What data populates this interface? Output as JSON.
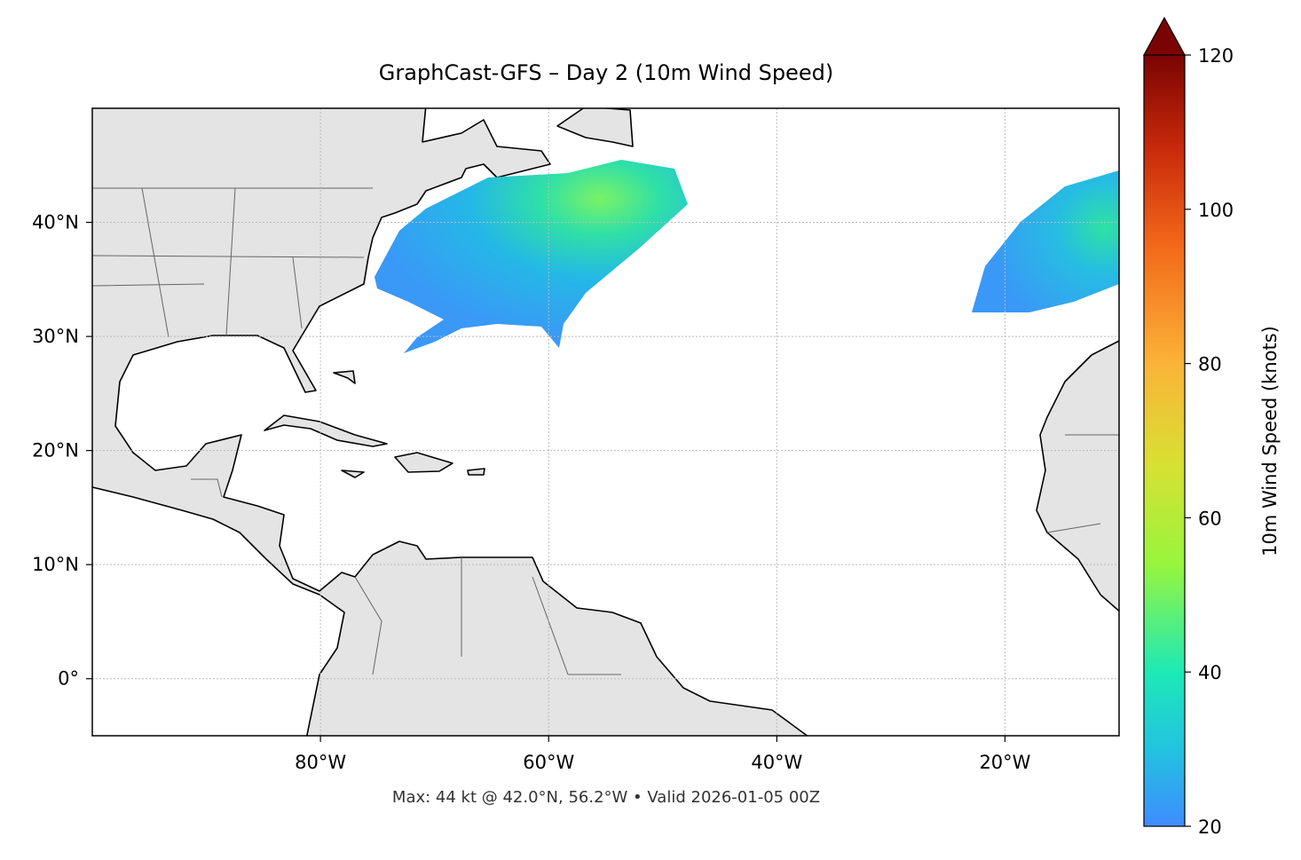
{
  "title": "GraphCast-GFS – Day 2 (10m Wind Speed)",
  "footer": "Max: 44 kt @ 42.0°N, 56.2°W • Valid 2026-01-05 00Z",
  "map": {
    "xlim": [
      -100,
      -10
    ],
    "ylim": [
      -5,
      50
    ],
    "xticks": [
      {
        "value": -80,
        "label": "80°W"
      },
      {
        "value": -60,
        "label": "60°W"
      },
      {
        "value": -40,
        "label": "40°W"
      },
      {
        "value": -20,
        "label": "20°W"
      }
    ],
    "yticks": [
      {
        "value": 0,
        "label": "0°"
      },
      {
        "value": 10,
        "label": "10°N"
      },
      {
        "value": 20,
        "label": "20°N"
      },
      {
        "value": 30,
        "label": "30°N"
      },
      {
        "value": 40,
        "label": "40°N"
      }
    ]
  },
  "colorbar": {
    "label": "10m Wind Speed (knots)",
    "lim": [
      20,
      120
    ],
    "ticks": [
      20,
      40,
      60,
      80,
      100,
      120
    ]
  }
}
